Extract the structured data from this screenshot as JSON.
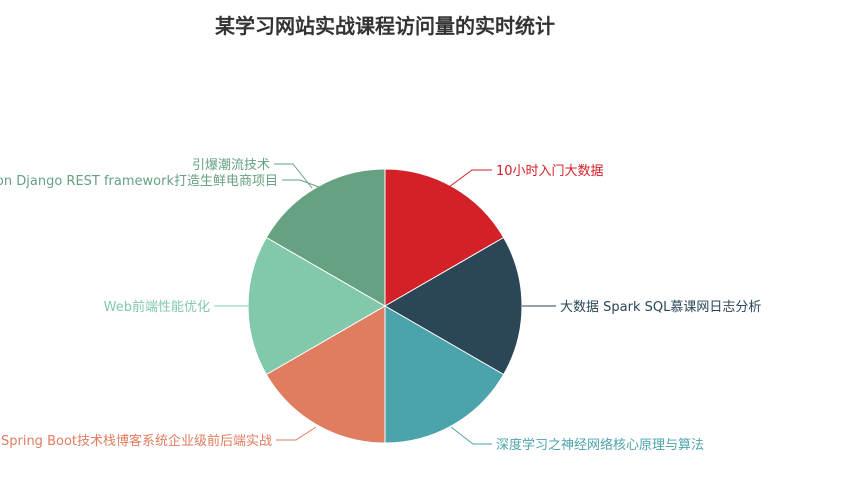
{
  "chart_data": {
    "type": "pie",
    "title": "某学习网站实战课程访问量的实时统计",
    "slices": [
      {
        "label": "10小时入门大数据",
        "value": 1,
        "color": "#d42027"
      },
      {
        "label": "大数据 Spark SQL慕课网日志分析",
        "value": 1,
        "color": "#2a4657"
      },
      {
        "label": "深度学习之神经网络核心原理与算法",
        "value": 1,
        "color": "#4ba3ab"
      },
      {
        "label": "Spring Boot技术栈博客系统企业级前后端实战",
        "value": 1,
        "color": "#e07c5f"
      },
      {
        "label": "Web前端性能优化",
        "value": 1,
        "color": "#82c9ab"
      },
      {
        "label": "Python Django REST framework打造生鲜电商项目",
        "value": 1,
        "color": "#66a182"
      },
      {
        "label": "引爆潮流技术",
        "value": 0,
        "color": "#66a182"
      }
    ]
  }
}
